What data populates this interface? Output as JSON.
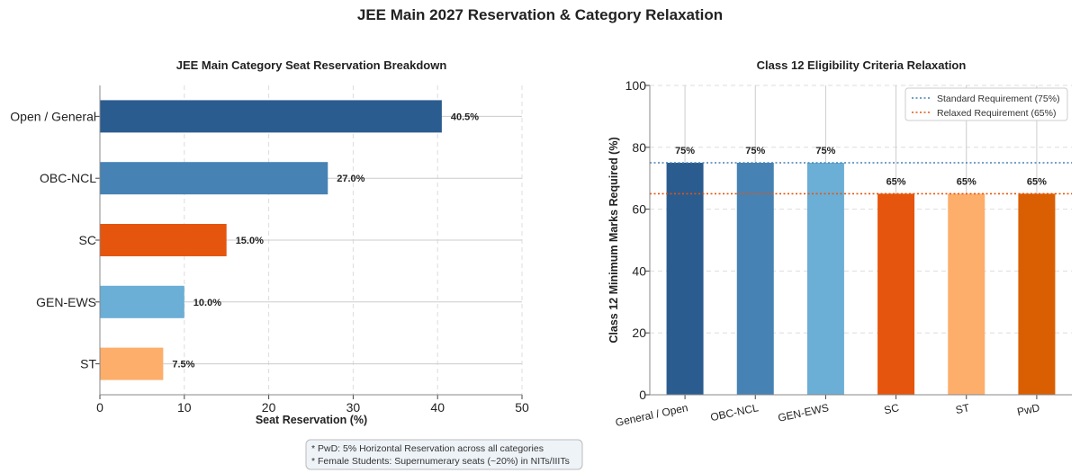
{
  "figure_title": "JEE Main 2027 Reservation & Category Relaxation",
  "chart_data": [
    {
      "type": "bar",
      "orientation": "horizontal",
      "title": "JEE Main Category Seat Reservation Breakdown",
      "xlabel": "Seat Reservation (%)",
      "ylabel": "",
      "categories": [
        "Open / General",
        "OBC-NCL",
        "SC",
        "GEN-EWS",
        "ST"
      ],
      "values": [
        40.5,
        27.0,
        15.0,
        10.0,
        7.5
      ],
      "value_labels": [
        "40.5%",
        "27.0%",
        "15.0%",
        "10.0%",
        "7.5%"
      ],
      "colors": [
        "#2b5c8f",
        "#4682b4",
        "#e6550d",
        "#6baed6",
        "#fdae6b"
      ],
      "xlim": [
        0,
        50
      ],
      "xticks": [
        "0",
        "10",
        "20",
        "30",
        "40",
        "50"
      ],
      "grid": "x-dashed"
    },
    {
      "type": "bar",
      "orientation": "vertical",
      "title": "Class 12 Eligibility Criteria Relaxation",
      "xlabel": "",
      "ylabel": "Class 12 Minimum Marks Required (%)",
      "categories": [
        "General / Open",
        "OBC-NCL",
        "GEN-EWS",
        "SC",
        "ST",
        "PwD"
      ],
      "values": [
        75,
        75,
        75,
        65,
        65,
        65
      ],
      "value_labels": [
        "75%",
        "75%",
        "75%",
        "65%",
        "65%",
        "65%"
      ],
      "colors": [
        "#2b5c8f",
        "#4682b4",
        "#6baed6",
        "#e6550d",
        "#fdae6b",
        "#d95f02"
      ],
      "ylim": [
        0,
        100
      ],
      "yticks": [
        "0",
        "20",
        "40",
        "60",
        "80",
        "100"
      ],
      "reference_lines": [
        {
          "name": "Standard Requirement (75%)",
          "value": 75,
          "color": "#4682b4"
        },
        {
          "name": "Relaxed Requirement (65%)",
          "value": 65,
          "color": "#e6550d"
        }
      ],
      "legend": "top-right",
      "grid": "both-dashed"
    }
  ],
  "notes": [
    "* PwD: 5% Horizontal Reservation across all categories",
    "* Female Students: Supernumerary seats (~20%) in NITs/IIITs"
  ]
}
